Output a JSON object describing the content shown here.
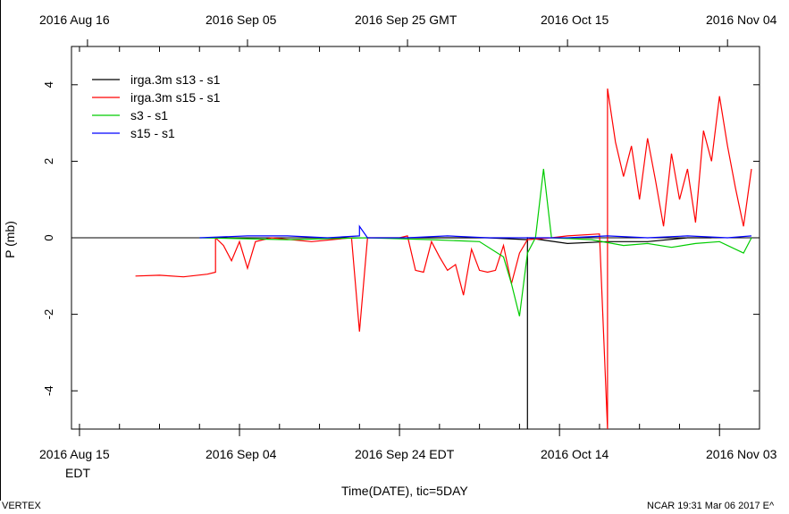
{
  "top_axis": {
    "tick_labels": [
      "2016 Aug 16",
      "2016 Sep 05",
      "2016 Sep 25 GMT",
      "2016 Oct 15",
      "2016 Nov 04"
    ]
  },
  "bottom_axis": {
    "tick_labels": [
      "2016 Aug 15",
      "2016 Sep 04",
      "2016 Sep 24 EDT",
      "2016 Oct 14",
      "2016 Nov 03"
    ],
    "tz_label": "EDT",
    "xlabel": "Time(DATE), tic=5DAY"
  },
  "footer": {
    "left": "VERTEX",
    "right": "NCAR 19:31 Mar 06 2017 E^"
  },
  "colors": {
    "s13": "#000000",
    "s15": "#ff0000",
    "s3": "#00cc00",
    "s15b": "#0000ff"
  },
  "chart_data": {
    "type": "line",
    "title": "",
    "xlabel": "Time(DATE), tic=5DAY",
    "ylabel": "P (mb)",
    "ylim": [
      -5,
      5
    ],
    "yticks": [
      "4",
      "2",
      "0",
      "-2",
      "-4"
    ],
    "xlim": [
      "2016-08-14",
      "2016-11-08"
    ],
    "legend_position": "top-left",
    "grid": false,
    "series": [
      {
        "name": "irga.3m s13 -  s1",
        "color": "#000000",
        "points": [
          [
            "2016-09-25",
            0.0
          ],
          [
            "2016-10-05",
            0.0
          ],
          [
            "2016-10-10",
            -0.05
          ],
          [
            "2016-10-10",
            -5.0
          ],
          [
            "2016-10-10",
            0.0
          ],
          [
            "2016-10-15",
            -0.15
          ],
          [
            "2016-10-20",
            -0.1
          ],
          [
            "2016-10-25",
            -0.1
          ],
          [
            "2016-10-30",
            0.0
          ],
          [
            "2016-11-02",
            0.0
          ]
        ]
      },
      {
        "name": "irga.3m s15 -  s1",
        "color": "#ff0000",
        "points": [
          [
            "2016-08-22",
            -1.0
          ],
          [
            "2016-08-25",
            -0.98
          ],
          [
            "2016-08-28",
            -1.02
          ],
          [
            "2016-08-31",
            -0.95
          ],
          [
            "2016-09-01",
            -0.9
          ],
          [
            "2016-09-01",
            0.0
          ],
          [
            "2016-09-02",
            -0.2
          ],
          [
            "2016-09-03",
            -0.6
          ],
          [
            "2016-09-04",
            -0.1
          ],
          [
            "2016-09-05",
            -0.8
          ],
          [
            "2016-09-06",
            -0.1
          ],
          [
            "2016-09-08",
            0.0
          ],
          [
            "2016-09-13",
            -0.1
          ],
          [
            "2016-09-18",
            0.0
          ],
          [
            "2016-09-19",
            -2.45
          ],
          [
            "2016-09-20",
            0.0
          ],
          [
            "2016-09-24",
            0.0
          ],
          [
            "2016-09-25",
            0.05
          ],
          [
            "2016-09-26",
            -0.85
          ],
          [
            "2016-09-27",
            -0.9
          ],
          [
            "2016-09-28",
            -0.1
          ],
          [
            "2016-09-29",
            -0.5
          ],
          [
            "2016-09-30",
            -0.85
          ],
          [
            "2016-10-01",
            -0.7
          ],
          [
            "2016-10-02",
            -1.5
          ],
          [
            "2016-10-03",
            -0.3
          ],
          [
            "2016-10-04",
            -0.85
          ],
          [
            "2016-10-05",
            -0.9
          ],
          [
            "2016-10-06",
            -0.85
          ],
          [
            "2016-10-07",
            -0.2
          ],
          [
            "2016-10-08",
            -1.2
          ],
          [
            "2016-10-09",
            -0.4
          ],
          [
            "2016-10-10",
            -0.05
          ],
          [
            "2016-10-13",
            0.0
          ],
          [
            "2016-10-15",
            0.05
          ],
          [
            "2016-10-19",
            0.1
          ],
          [
            "2016-10-20",
            -5.0
          ],
          [
            "2016-10-20",
            3.9
          ],
          [
            "2016-10-21",
            2.5
          ],
          [
            "2016-10-22",
            1.6
          ],
          [
            "2016-10-23",
            2.4
          ],
          [
            "2016-10-24",
            1.0
          ],
          [
            "2016-10-25",
            2.6
          ],
          [
            "2016-10-26",
            1.5
          ],
          [
            "2016-10-27",
            0.3
          ],
          [
            "2016-10-28",
            2.2
          ],
          [
            "2016-10-29",
            1.0
          ],
          [
            "2016-10-30",
            1.8
          ],
          [
            "2016-10-31",
            0.4
          ],
          [
            "2016-11-01",
            2.8
          ],
          [
            "2016-11-02",
            2.0
          ],
          [
            "2016-11-03",
            3.7
          ],
          [
            "2016-11-04",
            2.4
          ],
          [
            "2016-11-05",
            1.3
          ],
          [
            "2016-11-06",
            0.3
          ],
          [
            "2016-11-07",
            1.8
          ]
        ]
      },
      {
        "name": " s3 -  s1",
        "color": "#00cc00",
        "points": [
          [
            "2016-08-30",
            0.0
          ],
          [
            "2016-09-10",
            -0.05
          ],
          [
            "2016-09-20",
            0.0
          ],
          [
            "2016-09-28",
            -0.05
          ],
          [
            "2016-10-04",
            -0.1
          ],
          [
            "2016-10-07",
            -0.5
          ],
          [
            "2016-10-08",
            -1.2
          ],
          [
            "2016-10-09",
            -2.05
          ],
          [
            "2016-10-10",
            -0.4
          ],
          [
            "2016-10-11",
            0.0
          ],
          [
            "2016-10-12",
            1.8
          ],
          [
            "2016-10-13",
            0.0
          ],
          [
            "2016-10-18",
            -0.05
          ],
          [
            "2016-10-22",
            -0.2
          ],
          [
            "2016-10-25",
            -0.15
          ],
          [
            "2016-10-28",
            -0.25
          ],
          [
            "2016-10-31",
            -0.15
          ],
          [
            "2016-11-03",
            -0.1
          ],
          [
            "2016-11-06",
            -0.4
          ],
          [
            "2016-11-07",
            0.0
          ]
        ]
      },
      {
        "name": " s15 -  s1",
        "color": "#0000ff",
        "points": [
          [
            "2016-08-30",
            0.0
          ],
          [
            "2016-09-05",
            0.05
          ],
          [
            "2016-09-10",
            0.05
          ],
          [
            "2016-09-15",
            0.0
          ],
          [
            "2016-09-19",
            0.05
          ],
          [
            "2016-09-19",
            0.3
          ],
          [
            "2016-09-20",
            0.0
          ],
          [
            "2016-09-25",
            0.0
          ],
          [
            "2016-09-30",
            0.05
          ],
          [
            "2016-10-05",
            0.0
          ],
          [
            "2016-10-10",
            0.0
          ],
          [
            "2016-10-15",
            0.0
          ],
          [
            "2016-10-20",
            0.05
          ],
          [
            "2016-10-25",
            0.0
          ],
          [
            "2016-10-30",
            0.05
          ],
          [
            "2016-11-04",
            0.0
          ],
          [
            "2016-11-07",
            0.05
          ]
        ]
      }
    ]
  }
}
